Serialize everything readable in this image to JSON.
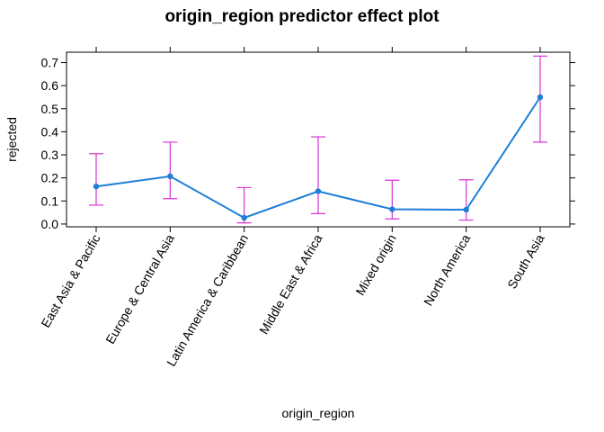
{
  "chart_data": {
    "type": "line",
    "title": "origin_region predictor effect plot",
    "xlabel": "origin_region",
    "ylabel": "rejected",
    "categories": [
      "East Asia & Pacific",
      "Europe & Central Asia",
      "Latin America & Caribbean",
      "Middle East & Africa",
      "Mixed origin",
      "North America",
      "South Asia"
    ],
    "series": [
      {
        "values": [
          0.163,
          0.207,
          0.027,
          0.142,
          0.064,
          0.062,
          0.55
        ],
        "lower": [
          0.082,
          0.11,
          0.005,
          0.045,
          0.022,
          0.017,
          0.355
        ],
        "upper": [
          0.305,
          0.355,
          0.158,
          0.378,
          0.19,
          0.192,
          0.728
        ]
      }
    ],
    "yticks": [
      "0.0",
      "0.1",
      "0.2",
      "0.3",
      "0.4",
      "0.5",
      "0.6",
      "0.7"
    ],
    "ylim": [
      -0.012,
      0.745
    ],
    "grid": false,
    "colors": {
      "line": "#1f7fd6",
      "error_bars": "#d633d6"
    }
  }
}
